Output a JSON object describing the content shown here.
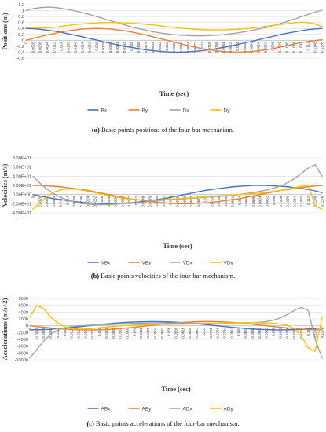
{
  "chart_data": [
    {
      "type": "line",
      "caption_label": "(a)",
      "caption_text": "Basic points positions of the four-bar mechanism.",
      "ylabel": "Positions (m)",
      "xlabel": "Time (sec)",
      "ylim": [
        -0.6,
        1.2
      ],
      "yticks": [
        "-0.6",
        "-0.4",
        "-0.2",
        "0",
        "0.2",
        "0.4",
        "0.6",
        "0.8",
        "1",
        "1.2"
      ],
      "x": [
        0,
        0.0028,
        0.0056,
        0.0084,
        0.0112,
        0.014,
        0.0168,
        0.0196,
        0.0224,
        0.0252,
        0.028,
        0.0308,
        0.0336,
        0.0364,
        0.0392,
        0.042,
        0.0448,
        0.0476,
        0.0504,
        0.0532,
        0.056,
        0.0588,
        0.0616,
        0.0644,
        0.0672,
        0.07,
        0.0728,
        0.0756,
        0.0784,
        0.0812,
        0.084,
        0.0868,
        0.0896,
        0.0924,
        0.0952,
        0.098,
        0.1008,
        0.1036,
        0.1064,
        0.1092,
        0.112,
        0.1148,
        0.1176
      ],
      "xtick_labels": [
        "0",
        "0.0028",
        "0.0056",
        "0.0084",
        "0.0112",
        "0.014",
        "0.0168",
        "0.0196",
        "0.0224",
        "0.0252",
        "0.028",
        "0.0308",
        "0.0336",
        "0.0364",
        "0.0392",
        "0.042",
        "0.0448",
        "0.0476",
        "0.0504",
        "0.0532",
        "0.056",
        "0.0588",
        "0.0616",
        "0.0644",
        "0.0672",
        "0.07",
        "0.0728",
        "0.0756",
        "0.0784",
        "0.0812",
        "0.084",
        "0.0868",
        "0.0896",
        "0.0924",
        "0.0952",
        "0.098",
        "0.1008",
        "0.1036",
        "0.1064",
        "0.1092",
        "0.112",
        "0.1148",
        "0.1176"
      ],
      "series": [
        {
          "name": "Bx",
          "color": "#4472c4",
          "values": [
            0.4,
            0.39,
            0.37,
            0.34,
            0.31,
            0.27,
            0.22,
            0.17,
            0.12,
            0.06,
            0.01,
            -0.05,
            -0.1,
            -0.15,
            -0.2,
            -0.24,
            -0.28,
            -0.32,
            -0.35,
            -0.37,
            -0.39,
            -0.4,
            -0.4,
            -0.39,
            -0.37,
            -0.35,
            -0.32,
            -0.28,
            -0.24,
            -0.19,
            -0.14,
            -0.09,
            -0.04,
            0.02,
            0.08,
            0.13,
            0.19,
            0.24,
            0.28,
            0.32,
            0.36,
            0.38,
            0.4
          ]
        },
        {
          "name": "By",
          "color": "#ed7d31",
          "values": [
            0.0,
            0.06,
            0.12,
            0.18,
            0.23,
            0.28,
            0.32,
            0.35,
            0.38,
            0.39,
            0.4,
            0.39,
            0.38,
            0.35,
            0.32,
            0.28,
            0.23,
            0.18,
            0.12,
            0.06,
            0.0,
            -0.06,
            -0.12,
            -0.18,
            -0.23,
            -0.28,
            -0.32,
            -0.35,
            -0.38,
            -0.39,
            -0.4,
            -0.39,
            -0.38,
            -0.35,
            -0.32,
            -0.28,
            -0.23,
            -0.18,
            -0.13,
            -0.08,
            -0.04,
            -0.01,
            0.02
          ]
        },
        {
          "name": "Dx",
          "color": "#a5a5a5",
          "values": [
            1.0,
            1.07,
            1.1,
            1.12,
            1.11,
            1.08,
            1.04,
            0.99,
            0.93,
            0.87,
            0.8,
            0.73,
            0.66,
            0.59,
            0.52,
            0.45,
            0.39,
            0.34,
            0.29,
            0.25,
            0.22,
            0.19,
            0.17,
            0.16,
            0.15,
            0.15,
            0.16,
            0.17,
            0.19,
            0.22,
            0.25,
            0.29,
            0.33,
            0.38,
            0.43,
            0.49,
            0.56,
            0.63,
            0.71,
            0.79,
            0.87,
            0.95,
            1.02
          ]
        },
        {
          "name": "Dy",
          "color": "#ffc000",
          "values": [
            0.45,
            0.42,
            0.41,
            0.42,
            0.44,
            0.47,
            0.5,
            0.53,
            0.55,
            0.57,
            0.59,
            0.6,
            0.6,
            0.6,
            0.59,
            0.58,
            0.56,
            0.54,
            0.52,
            0.49,
            0.46,
            0.44,
            0.41,
            0.39,
            0.37,
            0.36,
            0.35,
            0.35,
            0.35,
            0.36,
            0.37,
            0.39,
            0.41,
            0.44,
            0.47,
            0.5,
            0.53,
            0.56,
            0.59,
            0.61,
            0.6,
            0.55,
            0.46
          ]
        }
      ]
    },
    {
      "type": "line",
      "caption_label": "(b)",
      "caption_text": "Basic points velocities of the four-bar mechanism.",
      "ylabel": "Velocities (m/s)",
      "xlabel": "Time (sec)",
      "ylim": [
        -40,
        80
      ],
      "yticks": [
        "-4.00E+01",
        "-2.00E+01",
        "0.00E+00",
        "2.00E+01",
        "4.00E+01",
        "6.00E+01",
        "8.00E+01"
      ],
      "x": [
        0,
        0.0028,
        0.0056,
        0.0084,
        0.0112,
        0.014,
        0.0168,
        0.0196,
        0.0224,
        0.0252,
        0.028,
        0.0308,
        0.0336,
        0.0364,
        0.0392,
        0.042,
        0.0448,
        0.0476,
        0.0504,
        0.0532,
        0.056,
        0.0588,
        0.0616,
        0.0644,
        0.0672,
        0.07,
        0.0728,
        0.0756,
        0.0784,
        0.0812,
        0.084,
        0.0868,
        0.0896,
        0.0924,
        0.0952,
        0.098,
        0.1008,
        0.1036,
        0.1064,
        0.1092,
        0.112,
        0.1148,
        0.1176
      ],
      "xtick_labels": [
        "0",
        "0.0028",
        "0.0056",
        "0.0084",
        "0.0112",
        "0.014",
        "0.0168",
        "0.0196",
        "0.0224",
        "0.0252",
        "0.028",
        "0.0308",
        "0.0336",
        "0.0364",
        "0.0392",
        "0.042",
        "0.0448",
        "0.0476",
        "0.0504",
        "0.0532",
        "0.056",
        "0.0588",
        "0.0616",
        "0.0644",
        "0.0672",
        "0.07",
        "0.0728",
        "0.0756",
        "0.0784",
        "0.0812",
        "0.084",
        "0.0868",
        "0.0896",
        "0.0924",
        "0.0952",
        "0.098",
        "0.1008",
        "0.1036",
        "0.1064",
        "0.1092",
        "0.112",
        "0.1148",
        "0.1176"
      ],
      "series": [
        {
          "name": "VBx",
          "color": "#4472c4",
          "values": [
            0,
            -3,
            -6,
            -9,
            -11,
            -13,
            -15,
            -17,
            -18,
            -19,
            -20,
            -20,
            -20,
            -19,
            -18,
            -17,
            -15,
            -13,
            -11,
            -9,
            -6,
            -3,
            0,
            3,
            6,
            9,
            11,
            13,
            15,
            17,
            18,
            19,
            20,
            20,
            20,
            19,
            18,
            17,
            15,
            13,
            11,
            8,
            4
          ]
        },
        {
          "name": "VBy",
          "color": "#ed7d31",
          "values": [
            20,
            20,
            19,
            18,
            17,
            15,
            13,
            11,
            9,
            6,
            3,
            0,
            -3,
            -6,
            -9,
            -11,
            -13,
            -15,
            -17,
            -18,
            -19,
            -20,
            -20,
            -20,
            -19,
            -18,
            -17,
            -15,
            -13,
            -11,
            -9,
            -6,
            -3,
            0,
            3,
            6,
            9,
            11,
            13,
            15,
            17,
            19,
            20
          ]
        },
        {
          "name": "VDx",
          "color": "#a5a5a5",
          "values": [
            40,
            25,
            12,
            2,
            -6,
            -12,
            -16,
            -19,
            -21,
            -22,
            -22,
            -22,
            -21,
            -20,
            -19,
            -18,
            -17,
            -15,
            -14,
            -12,
            -11,
            -10,
            -9,
            -8,
            -7,
            -6,
            -5,
            -4,
            -3,
            -2,
            0,
            2,
            4,
            7,
            10,
            14,
            19,
            26,
            35,
            46,
            58,
            65,
            40
          ]
        },
        {
          "name": "VDy",
          "color": "#ffc000",
          "values": [
            -32,
            -18,
            -5,
            5,
            10,
            12,
            12,
            10,
            7,
            4,
            1,
            -2,
            -5,
            -8,
            -10,
            -11,
            -12,
            -12,
            -12,
            -11,
            -10,
            -9,
            -8,
            -7,
            -6,
            -5,
            -4,
            -3,
            -2,
            -1,
            0,
            1,
            2,
            3,
            5,
            7,
            9,
            12,
            15,
            18,
            20,
            -25,
            -32
          ]
        }
      ]
    },
    {
      "type": "line",
      "caption_label": "(c)",
      "caption_text": "Basic points accelerations of the four-bar mechanism.",
      "ylabel": "Accelerations (m/s^2)",
      "xlabel": "Time (sec)",
      "ylim": [
        -10000,
        8000
      ],
      "yticks": [
        "-10000",
        "-8000",
        "-6000",
        "-4000",
        "-2000",
        "0",
        "2000",
        "4000",
        "6000",
        "8000"
      ],
      "x": [
        0,
        0.0028,
        0.0056,
        0.0084,
        0.0112,
        0.014,
        0.0168,
        0.0196,
        0.0224,
        0.0252,
        0.028,
        0.0308,
        0.0336,
        0.0364,
        0.0392,
        0.042,
        0.0448,
        0.0476,
        0.0504,
        0.0532,
        0.056,
        0.0588,
        0.0616,
        0.0644,
        0.0672,
        0.07,
        0.0728,
        0.0756,
        0.0784,
        0.0812,
        0.084,
        0.0868,
        0.0896,
        0.0924,
        0.0952,
        0.098,
        0.1008,
        0.1036,
        0.1064,
        0.1092,
        0.112,
        0.1148,
        0.1176
      ],
      "xtick_labels": [
        "0",
        "0.0028",
        "0.0056",
        "0.0084",
        "0.0112",
        "0.014",
        "0.0168",
        "0.0196",
        "0.0224",
        "0.0252",
        "0.028",
        "0.0308",
        "0.0336",
        "0.0364",
        "0.0392",
        "0.042",
        "0.0448",
        "0.0476",
        "0.0504",
        "0.0532",
        "0.056",
        "0.0588",
        "0.0616",
        "0.0644",
        "0.0672",
        "0.07",
        "0.0728",
        "0.0756",
        "0.0784",
        "0.0812",
        "0.084",
        "0.0868",
        "0.0896",
        "0.0924",
        "0.0952",
        "0.098",
        "0.1008",
        "0.1036",
        "0.1064",
        "0.1092",
        "0.112",
        "0.1148",
        "0.1176"
      ],
      "series": [
        {
          "name": "ABx",
          "color": "#4472c4",
          "values": [
            -1200,
            -1180,
            -1120,
            -1020,
            -880,
            -710,
            -520,
            -310,
            -100,
            110,
            320,
            520,
            700,
            860,
            990,
            1090,
            1160,
            1200,
            1200,
            1170,
            1110,
            1020,
            900,
            750,
            580,
            390,
            190,
            -20,
            -230,
            -430,
            -620,
            -790,
            -940,
            -1060,
            -1150,
            -1200,
            -1220,
            -1200,
            -1150,
            -1060,
            -940,
            -790,
            -620
          ]
        },
        {
          "name": "ABy",
          "color": "#ed7d31",
          "values": [
            0,
            -230,
            -450,
            -650,
            -830,
            -980,
            -1100,
            -1180,
            -1220,
            -1220,
            -1180,
            -1100,
            -980,
            -830,
            -650,
            -450,
            -230,
            0,
            230,
            450,
            650,
            830,
            980,
            1100,
            1180,
            1220,
            1220,
            1180,
            1100,
            980,
            830,
            650,
            450,
            230,
            0,
            -230,
            -450,
            -650,
            -830,
            -980,
            -1100,
            -1180,
            -1220
          ]
        },
        {
          "name": "ADx",
          "color": "#a5a5a5",
          "values": [
            -9500,
            -7000,
            -4500,
            -2500,
            -1300,
            -600,
            -200,
            0,
            100,
            200,
            250,
            300,
            400,
            500,
            600,
            700,
            750,
            800,
            800,
            800,
            800,
            800,
            780,
            760,
            740,
            720,
            700,
            700,
            720,
            750,
            800,
            850,
            900,
            1000,
            1200,
            1600,
            2300,
            3300,
            4500,
            5400,
            4500,
            -4000,
            -9500
          ]
        },
        {
          "name": "ADy",
          "color": "#ffc000",
          "values": [
            2500,
            6000,
            5000,
            2500,
            800,
            -300,
            -800,
            -1000,
            -950,
            -800,
            -600,
            -400,
            -200,
            0,
            100,
            200,
            300,
            350,
            400,
            400,
            400,
            420,
            450,
            500,
            550,
            600,
            650,
            700,
            750,
            800,
            850,
            850,
            850,
            850,
            800,
            700,
            500,
            100,
            -800,
            -3000,
            -6500,
            -7500,
            2500
          ]
        }
      ]
    }
  ]
}
